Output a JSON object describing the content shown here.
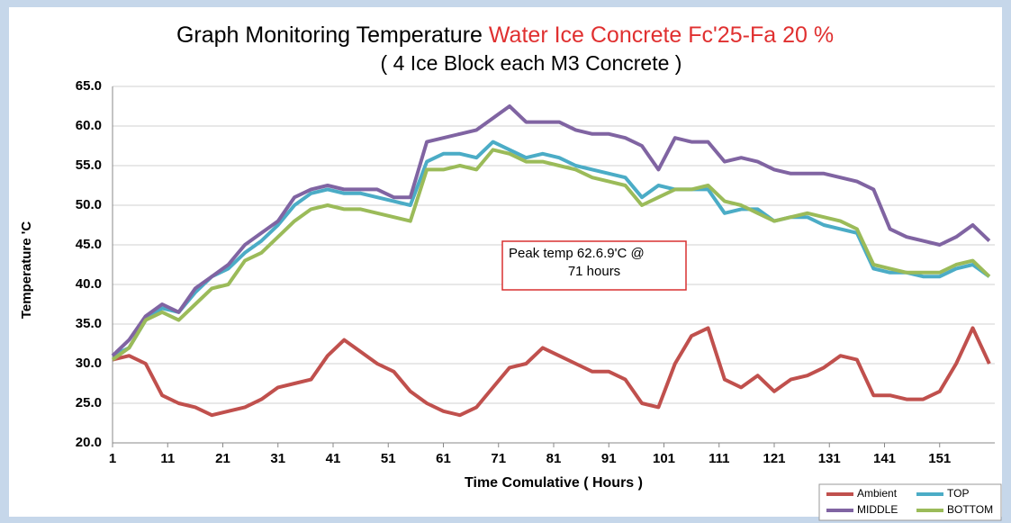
{
  "chart_data": {
    "type": "line",
    "title": "Graph Monitoring Temperature",
    "title_highlight": "Water Ice Concrete Fc'25-Fa 20 %",
    "subtitle": "( 4 Ice Block each M3 Concrete )",
    "x_label": "Time Comulative ( Hours )",
    "y_label": "Temperature 'C",
    "annotation": [
      "Peak temp 62.6.9'C      @",
      "71 hours"
    ],
    "x": [
      1,
      4,
      7,
      10,
      13,
      16,
      19,
      22,
      25,
      28,
      31,
      34,
      37,
      40,
      43,
      46,
      49,
      52,
      55,
      58,
      61,
      64,
      67,
      70,
      73,
      76,
      79,
      82,
      85,
      88,
      91,
      94,
      97,
      100,
      103,
      106,
      109,
      112,
      115,
      118,
      121,
      124,
      127,
      130,
      133,
      136,
      139,
      142,
      145,
      148,
      151,
      154,
      157,
      160
    ],
    "series": [
      {
        "name": "Ambient",
        "color": "#c0504d",
        "values": [
          30.5,
          31,
          30,
          26,
          25,
          24.5,
          23.5,
          24,
          24.5,
          25.5,
          27,
          27.5,
          28,
          31,
          33,
          31.5,
          30,
          29,
          26.5,
          25,
          24,
          23.5,
          24.5,
          27,
          29.5,
          30,
          32,
          31,
          30,
          29,
          29,
          28,
          25,
          24.5,
          30,
          33.5,
          34.5,
          28,
          27,
          28.5,
          26.5,
          28,
          28.5,
          29.5,
          31,
          30.5,
          26,
          26,
          25.5,
          25.5,
          26.5,
          30,
          34.5,
          30
        ]
      },
      {
        "name": "TOP",
        "color": "#4bacc6",
        "values": [
          31,
          32,
          35.5,
          37,
          36.5,
          39,
          41,
          42,
          44,
          45.5,
          47.5,
          50,
          51.5,
          52,
          51.5,
          51.5,
          51,
          50.5,
          50,
          55.5,
          56.5,
          56.5,
          56,
          58,
          57,
          56,
          56.5,
          56,
          55,
          54.5,
          54,
          53.5,
          51,
          52.5,
          52,
          52,
          52,
          49,
          49.5,
          49.5,
          48,
          48.5,
          48.5,
          47.5,
          47,
          46.5,
          42,
          41.5,
          41.5,
          41,
          41,
          42,
          42.5,
          41
        ]
      },
      {
        "name": "MIDDLE",
        "color": "#8064a2",
        "values": [
          31,
          33,
          36,
          37.5,
          36.5,
          39.5,
          41,
          42.5,
          45,
          46.5,
          48,
          51,
          52,
          52.5,
          52,
          52,
          52,
          51,
          51,
          58,
          58.5,
          59,
          59.5,
          61,
          62.5,
          60.5,
          60.5,
          60.5,
          59.5,
          59,
          59,
          58.5,
          57.5,
          54.5,
          58.5,
          58,
          58,
          55.5,
          56,
          55.5,
          54.5,
          54,
          54,
          54,
          53.5,
          53,
          52,
          47,
          46,
          45.5,
          45,
          46,
          47.5,
          45.5
        ]
      },
      {
        "name": "BOTTOM",
        "color": "#9bbb59",
        "values": [
          30.5,
          32,
          35.5,
          36.5,
          35.5,
          37.5,
          39.5,
          40,
          43,
          44,
          46,
          48,
          49.5,
          50,
          49.5,
          49.5,
          49,
          48.5,
          48,
          54.5,
          54.5,
          55,
          54.5,
          57,
          56.5,
          55.5,
          55.5,
          55,
          54.5,
          53.5,
          53,
          52.5,
          50,
          51,
          52,
          52,
          52.5,
          50.5,
          50,
          49,
          48,
          48.5,
          49,
          48.5,
          48,
          47,
          42.5,
          42,
          41.5,
          41.5,
          41.5,
          42.5,
          43,
          41
        ]
      }
    ],
    "xlim": [
      1,
      161
    ],
    "xticks": [
      1,
      11,
      21,
      31,
      41,
      51,
      61,
      71,
      81,
      91,
      101,
      111,
      121,
      131,
      141,
      151
    ],
    "ylim": [
      20,
      65
    ],
    "yticks": [
      {
        "value": 20,
        "label": "20.0"
      },
      {
        "value": 25,
        "label": "25.0"
      },
      {
        "value": 30,
        "label": "30.0"
      },
      {
        "value": 35,
        "label": "35.0"
      },
      {
        "value": 40,
        "label": "40.0"
      },
      {
        "value": 45,
        "label": "45.0"
      },
      {
        "value": 50,
        "label": "50.0"
      },
      {
        "value": 55,
        "label": "55.0"
      },
      {
        "value": 60,
        "label": "60.0"
      },
      {
        "value": 65,
        "label": "65.0"
      }
    ],
    "grid": true,
    "legend": "bottom-right"
  }
}
